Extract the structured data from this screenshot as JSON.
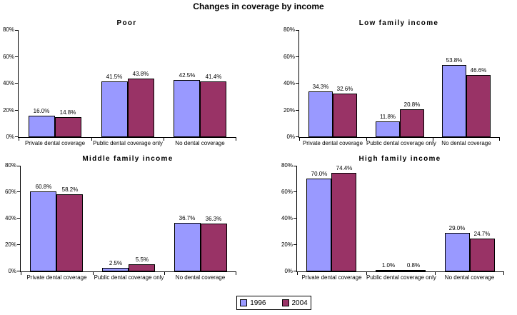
{
  "main_title": "Changes in coverage by income",
  "colors": {
    "series_1996": "#9999FF",
    "series_2004": "#993366",
    "axis": "#000000",
    "background": "#FFFFFF",
    "text": "#000000"
  },
  "legend": {
    "items": [
      {
        "label": "1996",
        "color": "#9999FF"
      },
      {
        "label": "2004",
        "color": "#993366"
      }
    ]
  },
  "chart_data": [
    {
      "type": "bar",
      "title": "Poor",
      "categories": [
        "Private dental coverage",
        "Public dental coverage only",
        "No dental coverage"
      ],
      "series": [
        {
          "name": "1996",
          "values": [
            16.0,
            41.5,
            42.5
          ]
        },
        {
          "name": "2004",
          "values": [
            14.8,
            43.8,
            41.4
          ]
        }
      ],
      "ylim": [
        0,
        80
      ],
      "yticks": [
        "0%",
        "20%",
        "40%",
        "60%",
        "80%"
      ],
      "grid": false,
      "data_labels": true,
      "label_format": "percent_1dp"
    },
    {
      "type": "bar",
      "title": "Low family income",
      "categories": [
        "Private dental coverage",
        "Public dental coverage only",
        "No dental coverage"
      ],
      "series": [
        {
          "name": "1996",
          "values": [
            34.3,
            11.8,
            53.8
          ]
        },
        {
          "name": "2004",
          "values": [
            32.6,
            20.8,
            46.6
          ]
        }
      ],
      "ylim": [
        0,
        80
      ],
      "yticks": [
        "0%",
        "20%",
        "40%",
        "60%",
        "80%"
      ],
      "grid": false,
      "data_labels": true,
      "label_format": "percent_1dp"
    },
    {
      "type": "bar",
      "title": "Middle family income",
      "categories": [
        "Private dental coverage",
        "Public dental coverage only",
        "No dental coverage"
      ],
      "series": [
        {
          "name": "1996",
          "values": [
            60.8,
            2.5,
            36.7
          ]
        },
        {
          "name": "2004",
          "values": [
            58.2,
            5.5,
            36.3
          ]
        }
      ],
      "ylim": [
        0,
        80
      ],
      "yticks": [
        "0%",
        "20%",
        "40%",
        "60%",
        "80%"
      ],
      "grid": false,
      "data_labels": true,
      "label_format": "percent_1dp"
    },
    {
      "type": "bar",
      "title": "High family income",
      "categories": [
        "Private dental coverage",
        "Public dental coverage only",
        "No dental coverage"
      ],
      "series": [
        {
          "name": "1996",
          "values": [
            70.0,
            1.0,
            29.0
          ]
        },
        {
          "name": "2004",
          "values": [
            74.4,
            0.8,
            24.7
          ]
        }
      ],
      "ylim": [
        0,
        80
      ],
      "yticks": [
        "0%",
        "20%",
        "40%",
        "60%",
        "80%"
      ],
      "grid": false,
      "data_labels": true,
      "label_format": "percent_1dp"
    }
  ]
}
